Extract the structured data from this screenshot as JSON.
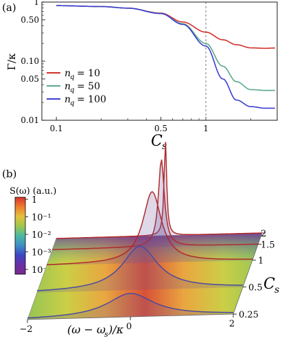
{
  "chart_data": [
    {
      "panel": "(a)",
      "type": "line",
      "ylabel": "Γ/κ",
      "xlabel": "C_s",
      "xscale": "log",
      "yscale": "log",
      "xlim": [
        0.08,
        3.0
      ],
      "ylim": [
        0.01,
        1.0
      ],
      "xticks": [
        "0.1",
        "0.5",
        "1"
      ],
      "yticks": [
        "0.01",
        "0.05",
        "0.10",
        "0.50",
        "1"
      ],
      "grid": false,
      "legend_position": "bottom-left",
      "annotation": "dashed vertical line at C_s = 1",
      "series": [
        {
          "name": "n_q = 10",
          "color": "#d2302a",
          "x": [
            0.1,
            0.2,
            0.3,
            0.5,
            0.7,
            1.0,
            1.3,
            1.6,
            2.0,
            2.5,
            2.9
          ],
          "y": [
            0.87,
            0.84,
            0.79,
            0.65,
            0.46,
            0.31,
            0.23,
            0.19,
            0.168,
            0.165,
            0.167
          ]
        },
        {
          "name": "n_q = 50",
          "color": "#5aa88a",
          "x": [
            0.1,
            0.2,
            0.3,
            0.5,
            0.7,
            1.0,
            1.3,
            1.6,
            2.0,
            2.5,
            2.9
          ],
          "y": [
            0.87,
            0.84,
            0.79,
            0.64,
            0.43,
            0.2,
            0.082,
            0.045,
            0.033,
            0.032,
            0.032
          ]
        },
        {
          "name": "n_q = 100",
          "color": "#3a3ecf",
          "x": [
            0.1,
            0.2,
            0.3,
            0.5,
            0.7,
            1.0,
            1.3,
            1.6,
            2.0,
            2.5,
            2.9
          ],
          "y": [
            0.87,
            0.84,
            0.79,
            0.64,
            0.42,
            0.18,
            0.05,
            0.022,
            0.017,
            0.016,
            0.016
          ]
        }
      ]
    },
    {
      "panel": "(b)",
      "type": "surface",
      "zlabel": "S(ω) (a.u.)",
      "xlabel": "(ω − ω_s)/κ",
      "ylabel": "C_s",
      "xlim": [
        -2,
        2
      ],
      "ylim": [
        0.25,
        2
      ],
      "xticks": [
        "−2",
        "0",
        "2"
      ],
      "yticks": [
        "2",
        "1.5",
        "1",
        "0.5",
        "0.25"
      ],
      "colorbar_ticks": [
        "1",
        "10⁻¹",
        "10⁻²",
        "10⁻³",
        "10⁻⁴"
      ],
      "colorbar_colors": [
        "#d7332c",
        "#ef7d2e",
        "#e4c13c",
        "#9ec74e",
        "#4bb8a1",
        "#3f8ec6",
        "#3b47c4",
        "#6a2fa6",
        "#7a2a8c"
      ],
      "series": [
        {
          "C_s": 0.25,
          "peak": 0.38,
          "width": 0.55
        },
        {
          "C_s": 0.5,
          "peak": 0.62,
          "width": 0.42
        },
        {
          "C_s": 1.0,
          "peak": 0.9,
          "width": 0.22
        },
        {
          "C_s": 1.5,
          "peak": 1.0,
          "width": 0.07
        },
        {
          "C_s": 2.0,
          "peak": 1.0,
          "width": 0.03
        }
      ]
    }
  ],
  "panel_a": {
    "label": "(a)",
    "ylabel_main": "Γ/κ",
    "xlabel_main": "C",
    "xlabel_sub": "s",
    "yticks": [
      "0.01",
      "0.05",
      "0.10",
      "0.50",
      "1"
    ],
    "xticks": [
      "0.1",
      "0.5",
      "1"
    ],
    "legend": [
      {
        "label": "= 10",
        "var": "n",
        "sub": "q"
      },
      {
        "label": "= 50",
        "var": "n",
        "sub": "q"
      },
      {
        "label": "= 100",
        "var": "n",
        "sub": "q"
      }
    ]
  },
  "panel_b": {
    "label": "(b)",
    "colorbar_title": "S(ω) (a.u.)",
    "colorbar_ticks": [
      "1",
      "10⁻¹",
      "10⁻²",
      "10⁻³",
      "10⁻⁴"
    ],
    "xlabel": "(ω − ω",
    "xlabel_sub": "s",
    "xlabel_tail": ")/κ",
    "xticks": [
      "−2",
      "0",
      "2"
    ],
    "ylabel_main": "C",
    "ylabel_sub": "s",
    "yticks": [
      "2",
      "1.5",
      "1",
      "0.5",
      "0.25"
    ]
  }
}
